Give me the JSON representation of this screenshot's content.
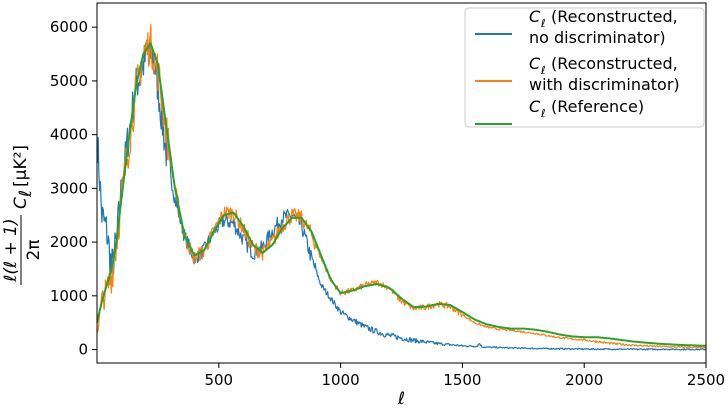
{
  "chart_data": {
    "type": "line",
    "xlabel": "ℓ",
    "ylabel": "ℓ(ℓ + 1) / 2π · Cℓ [μK²]",
    "ylabel_parts": {
      "numerator": "ℓ(ℓ + 1)",
      "denominator": "2π",
      "rest": "C",
      "sub": "ℓ",
      "unit": "[μK²]"
    },
    "xlim": [
      0,
      2500
    ],
    "ylim": [
      -250,
      6450
    ],
    "xticks": [
      500,
      1000,
      1500,
      2000,
      2500
    ],
    "yticks": [
      0,
      1000,
      2000,
      3000,
      4000,
      5000,
      6000
    ],
    "grid": false,
    "legend_position": "top-right",
    "series": [
      {
        "name": "Cℓ (Reconstructed, no discriminator)",
        "legend_lines": [
          "(Reconstructed,",
          "no discriminator)"
        ],
        "color": "#1f77b4",
        "noisy": true,
        "x": [
          0,
          20,
          40,
          60,
          80,
          100,
          130,
          160,
          190,
          210,
          230,
          250,
          280,
          320,
          360,
          400,
          440,
          480,
          520,
          560,
          600,
          640,
          680,
          720,
          760,
          800,
          840,
          880,
          920,
          960,
          1000,
          1050,
          1100,
          1150,
          1200,
          1300,
          1400,
          1500,
          1560,
          1570,
          1580,
          1600,
          1700,
          1800,
          1900,
          2000,
          2100,
          2200,
          2300,
          2400,
          2500
        ],
        "y": [
          4000,
          2500,
          2200,
          1500,
          2000,
          3000,
          4000,
          4900,
          5300,
          5550,
          5450,
          4900,
          3800,
          2800,
          2100,
          1700,
          1850,
          2200,
          2400,
          2350,
          2050,
          1800,
          1900,
          2200,
          2450,
          2500,
          2300,
          1700,
          1200,
          950,
          700,
          550,
          420,
          330,
          260,
          170,
          110,
          70,
          60,
          120,
          50,
          45,
          30,
          20,
          15,
          10,
          8,
          6,
          5,
          4,
          3
        ]
      },
      {
        "name": "Cℓ (Reconstructed, with discriminator)",
        "legend_lines": [
          "(Reconstructed,",
          "with discriminator)"
        ],
        "color": "#ff7f0e",
        "noisy": true,
        "x": [
          0,
          20,
          40,
          60,
          80,
          100,
          130,
          160,
          190,
          220,
          250,
          280,
          320,
          360,
          400,
          440,
          480,
          520,
          560,
          600,
          640,
          680,
          720,
          760,
          800,
          840,
          880,
          920,
          960,
          1000,
          1050,
          1100,
          1150,
          1200,
          1250,
          1300,
          1350,
          1400,
          1450,
          1500,
          1550,
          1600,
          1650,
          1700,
          1750,
          1800,
          1900,
          2000,
          2100,
          2200,
          2300,
          2400,
          2500
        ],
        "y": [
          300,
          900,
          1100,
          1400,
          2000,
          2800,
          3800,
          4800,
          5500,
          5700,
          5200,
          4200,
          3000,
          2100,
          1700,
          1850,
          2200,
          2550,
          2550,
          2250,
          1900,
          1800,
          2000,
          2300,
          2500,
          2450,
          2150,
          1700,
          1300,
          1050,
          1100,
          1200,
          1250,
          1150,
          900,
          760,
          790,
          850,
          800,
          650,
          500,
          420,
          380,
          360,
          330,
          300,
          220,
          180,
          120,
          80,
          60,
          45,
          35
        ]
      },
      {
        "name": "Cℓ (Reference)",
        "legend_lines": [
          "(Reference)"
        ],
        "color": "#2ca02c",
        "noisy": false,
        "x": [
          0,
          20,
          40,
          60,
          80,
          100,
          130,
          160,
          190,
          220,
          250,
          280,
          320,
          360,
          400,
          440,
          480,
          520,
          560,
          600,
          640,
          680,
          720,
          760,
          800,
          840,
          880,
          920,
          960,
          1000,
          1050,
          1100,
          1150,
          1200,
          1250,
          1300,
          1350,
          1400,
          1450,
          1500,
          1550,
          1600,
          1650,
          1700,
          1750,
          1800,
          1850,
          1900,
          1950,
          2000,
          2050,
          2100,
          2150,
          2200,
          2300,
          2400,
          2500
        ],
        "y": [
          500,
          900,
          1200,
          1500,
          2000,
          2800,
          3900,
          4900,
          5500,
          5700,
          5300,
          4300,
          3000,
          2100,
          1750,
          1850,
          2200,
          2500,
          2550,
          2300,
          1950,
          1800,
          1950,
          2250,
          2450,
          2450,
          2200,
          1750,
          1300,
          1050,
          1100,
          1180,
          1220,
          1150,
          950,
          790,
          800,
          850,
          830,
          700,
          560,
          470,
          420,
          390,
          390,
          370,
          330,
          280,
          245,
          230,
          230,
          210,
          180,
          150,
          110,
          85,
          70
        ]
      }
    ]
  }
}
